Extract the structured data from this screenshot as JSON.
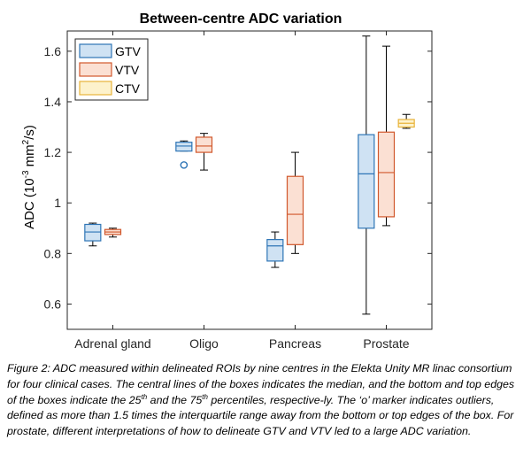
{
  "chart_data": {
    "type": "box",
    "title": "Between-centre ADC variation",
    "xlabel": "",
    "ylabel": {
      "prefix": "ADC (10",
      "exp1": "-3",
      "mid": " mm",
      "exp2": "2",
      "suffix": "/s)"
    },
    "ylim": [
      0.5,
      1.68
    ],
    "yticks": [
      0.6,
      0.8,
      1.0,
      1.2,
      1.4,
      1.6
    ],
    "ytick_labels": [
      "0.6",
      "0.8",
      "1",
      "1.2",
      "1.4",
      "1.6"
    ],
    "categories": [
      "Adrenal gland",
      "Oligo",
      "Pancreas",
      "Prostate"
    ],
    "legend_position": "top-left",
    "series": [
      {
        "name": "GTV",
        "edge_color": "#2e75b6",
        "fill_color": "#cfe2f3",
        "boxes": [
          {
            "min": 0.83,
            "q1": 0.85,
            "median": 0.885,
            "q3": 0.915,
            "max": 0.92,
            "outliers": []
          },
          {
            "min": 1.205,
            "q1": 1.205,
            "median": 1.225,
            "q3": 1.24,
            "max": 1.245,
            "outliers": [
              1.15
            ]
          },
          {
            "min": 0.745,
            "q1": 0.77,
            "median": 0.83,
            "q3": 0.855,
            "max": 0.885,
            "outliers": []
          },
          {
            "min": 0.56,
            "q1": 0.9,
            "median": 1.115,
            "q3": 1.27,
            "max": 1.66,
            "outliers": []
          }
        ]
      },
      {
        "name": "VTV",
        "edge_color": "#d1572b",
        "fill_color": "#fbe0d3",
        "boxes": [
          {
            "min": 0.865,
            "q1": 0.875,
            "median": 0.885,
            "q3": 0.895,
            "max": 0.9,
            "outliers": []
          },
          {
            "min": 1.13,
            "q1": 1.2,
            "median": 1.225,
            "q3": 1.26,
            "max": 1.275,
            "outliers": []
          },
          {
            "min": 0.8,
            "q1": 0.835,
            "median": 0.955,
            "q3": 1.105,
            "max": 1.2,
            "outliers": []
          },
          {
            "min": 0.91,
            "q1": 0.945,
            "median": 1.12,
            "q3": 1.28,
            "max": 1.62,
            "outliers": []
          }
        ]
      },
      {
        "name": "CTV",
        "edge_color": "#e8b33a",
        "fill_color": "#fdf2cc",
        "boxes": [
          null,
          null,
          null,
          {
            "min": 1.295,
            "q1": 1.3,
            "median": 1.315,
            "q3": 1.33,
            "max": 1.35,
            "outliers": []
          }
        ]
      }
    ]
  },
  "caption": {
    "part1": "Figure 2: ADC measured within delineated ROIs by nine centres in the Elekta Unity MR linac consortium for four clinical cases. The central lines of the boxes indicates the median, and the bottom and top edges of the boxes indicate the 25",
    "sup1": "th",
    "part2": " and the 75",
    "sup2": "th",
    "part3": " percentiles, respective-ly. The ‘o’ marker indicates outliers, defined as more than 1.5 times the interquartile range away from the bottom or top edges of the box. For prostate, different interpretations of how to delineate GTV and VTV led to a large ADC variation."
  }
}
